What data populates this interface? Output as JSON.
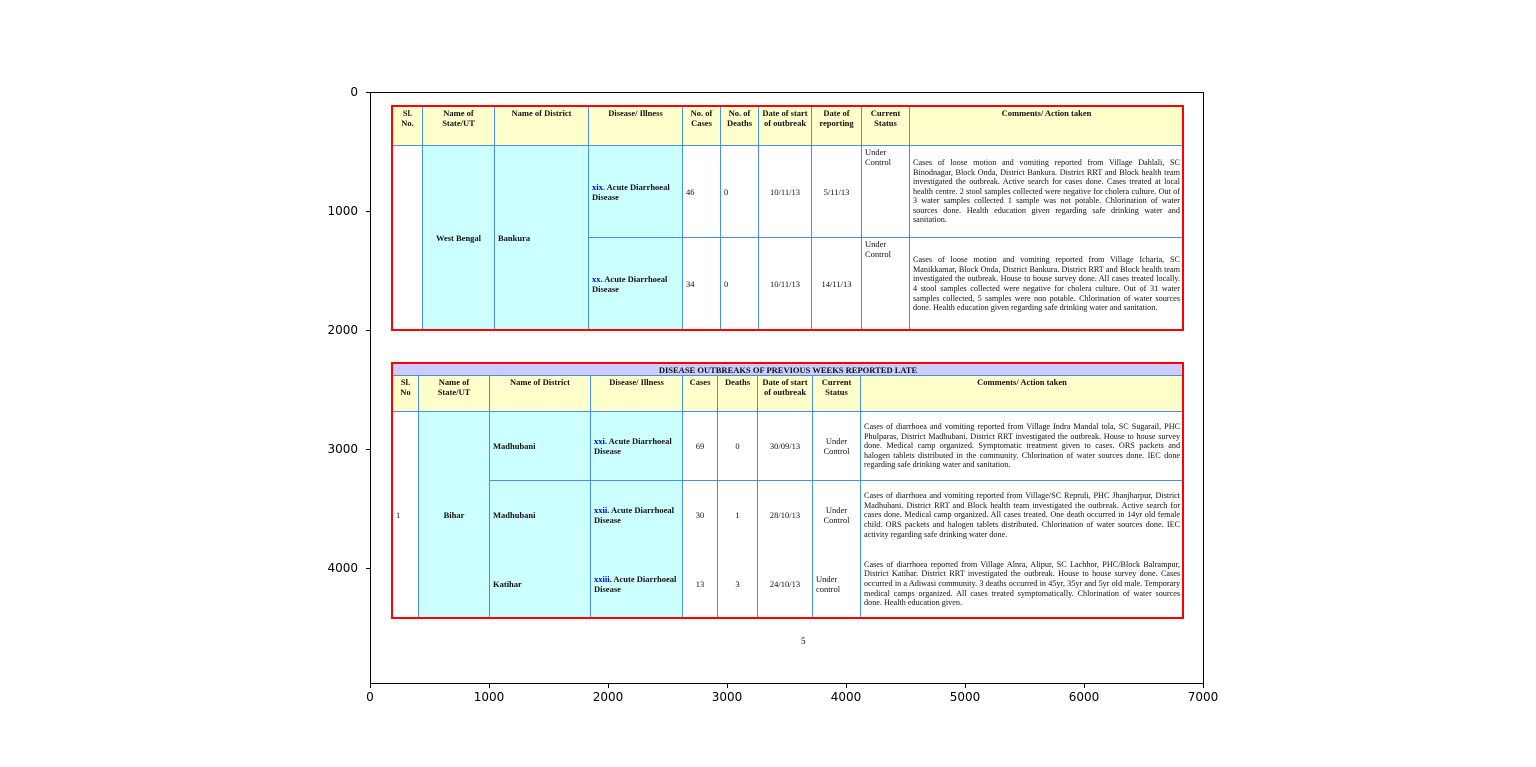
{
  "axes": {
    "x_ticks": [
      "0",
      "1000",
      "2000",
      "3000",
      "4000",
      "5000",
      "6000",
      "7000"
    ],
    "y_ticks": [
      "0",
      "1000",
      "2000",
      "3000",
      "4000"
    ]
  },
  "table1": {
    "headers": [
      "Sl. No.",
      "Name of State/UT",
      "Name of District",
      "Disease/ Illness",
      "No. of Cases",
      "No. of Deaths",
      "Date of start of outbreak",
      "Date of reporting",
      "Current Status",
      "Comments/ Action taken"
    ],
    "state": "West Bengal",
    "district": "Bankura",
    "rows": [
      {
        "num": "xix.",
        "disease": "Acute Diarrhoeal Disease",
        "cases": "46",
        "deaths": "0",
        "start": "10/11/13",
        "report": "5/11/13",
        "status": "Under Control",
        "comment": "Cases of loose motion and vomiting reported from Village Dahlali, SC Binodnagar, Block Onda, District Bankura. District RRT and Block health team investigated the outbreak. Active search for cases done. Cases treated at local health centre. 2 stool samples collected were negative for cholera culture. Out of 3 water samples collected 1 sample was not potable. Chlorination of water sources done. Health education given regarding safe drinking water and sanitation."
      },
      {
        "num": "xx.",
        "disease": "Acute Diarrhoeal Disease",
        "cases": "34",
        "deaths": "0",
        "start": "10/11/13",
        "report": "14/11/13",
        "status": "Under Control",
        "comment": "Cases of loose motion and vomiting reported from Village Icharia, SC Manikkamar, Block Onda, District Bankura. District RRT and Block health team investigated the outbreak. House to house survey done. All cases treated locally. 4 stool samples collected were negative for cholera culture. Out of 31 water samples collected, 5 samples were non potable. Chlorination of water sources done. Health education given regarding safe drinking water and sanitation."
      }
    ]
  },
  "table2": {
    "title": "DISEASE OUTBREAKS OF PREVIOUS WEEKS REPORTED LATE",
    "headers": [
      "Sl. No",
      "Name of State/UT",
      "Name of District",
      "Disease/ Illness",
      "Cases",
      "Deaths",
      "Date of start of outbreak",
      "Current Status",
      "Comments/ Action taken"
    ],
    "sl": "1",
    "state": "Bihar",
    "rows": [
      {
        "district": "Madhubani",
        "num": "xxi.",
        "disease": "Acute Diarrhoeal Disease",
        "cases": "69",
        "deaths": "0",
        "start": "30/09/13",
        "status": "Under Control",
        "comment": "Cases of diarrhoea and vomiting reported from Village Indra Mandal tola, SC Sugarail, PHC Phulparas, District Madhubani. District RRT investigated the outbreak. House to house survey done. Medical camp organized. Symptomatic treatment given to cases. ORS packets and halogen tablets distributed in the community. Chlorination of water sources done. IEC done regarding safe drinking water and sanitation."
      },
      {
        "district": "Madhubani",
        "num": "xxii.",
        "disease": "Acute Diarrhoeal Disease",
        "cases": "30",
        "deaths": "1",
        "start": "28/10/13",
        "status": "Under Control",
        "comment": "Cases of diarrhoea and vomiting reported from Village/SC Repruli, PHC Jhanjharpur, District Madhubani. District RRT and Block health team investigated the outbreak. Active search for cases done. Medical camp organized. All cases treated. One death occurred in 14yr old female child. ORS packets and halogen tablets distributed. Chlorination of water sources done. IEC activity regarding safe drinking water done."
      },
      {
        "district": "Katihar",
        "num": "xxiii.",
        "disease": "Acute Diarrhoeal Disease",
        "cases": "13",
        "deaths": "3",
        "start": "24/10/13",
        "status": "Under control",
        "comment": "Cases of diarrhoea reported from Village Alnra, Alipur, SC Lachhor, PHC/Block Balrampur, District Katihar. District RRT investigated the outbreak. House to house survey done. Cases occurred in a Adiwasi community. 3 deaths occurred in 45yr, 35yr and 5yr old male. Temporary medical camps organized. All cases treated symptomatically. Chlorination of water sources done. Health education given."
      }
    ]
  },
  "page_number": "5",
  "colors": {
    "frame": "#ff0000",
    "header": "#ffffcc",
    "cyan": "#ccffff",
    "title_bar": "#ccccff",
    "grid": "#4a90e2",
    "item_number": "#0000cc"
  }
}
